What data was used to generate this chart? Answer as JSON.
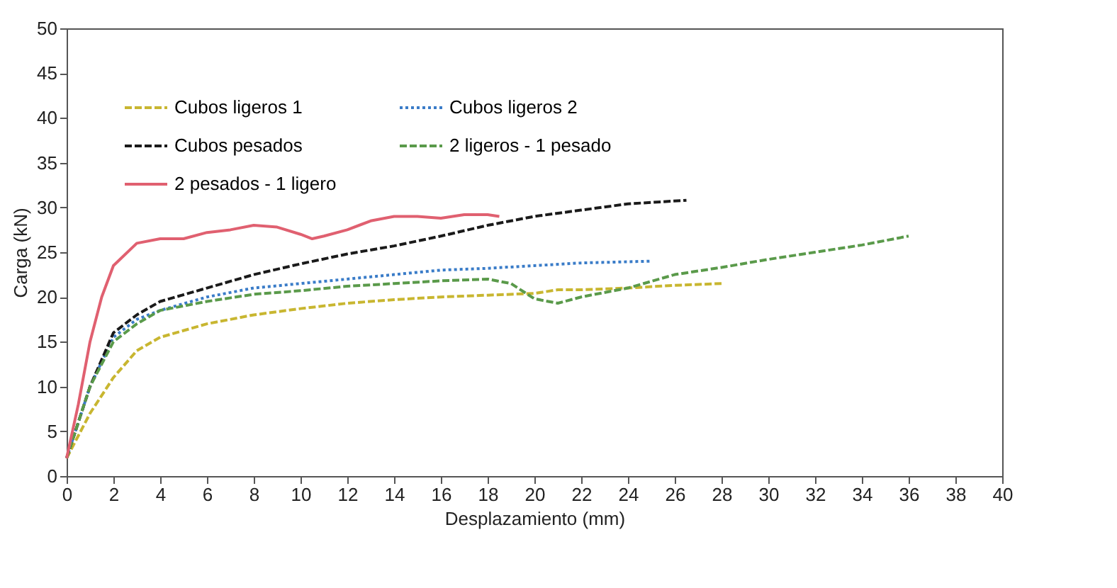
{
  "chart_data": {
    "type": "line",
    "xlabel": "Desplazamiento (mm)",
    "ylabel": "Carga (kN)",
    "xlim": [
      0,
      40
    ],
    "xticks": [
      0,
      2,
      4,
      6,
      8,
      10,
      12,
      14,
      16,
      18,
      20,
      22,
      24,
      26,
      28,
      30,
      32,
      34,
      36,
      38,
      40
    ],
    "ylim": [
      0,
      50
    ],
    "yticks": [
      0,
      5,
      10,
      15,
      20,
      25,
      30,
      35,
      40,
      45,
      50
    ],
    "grid": false,
    "legend": "top left",
    "series": [
      {
        "name": "Cubos ligeros 1",
        "color": "#c8b630",
        "line_style": "dashed",
        "x": [
          0,
          1,
          2,
          3,
          4,
          6,
          8,
          10,
          12,
          14,
          16,
          18,
          20,
          21,
          22,
          24,
          26,
          28
        ],
        "values": [
          2,
          7,
          11,
          14,
          15.5,
          17,
          18,
          18.7,
          19.3,
          19.7,
          20,
          20.2,
          20.4,
          20.8,
          20.8,
          21,
          21.3,
          21.5
        ]
      },
      {
        "name": "Cubos ligeros 2",
        "color": "#3a7cc8",
        "line_style": "dotted",
        "x": [
          0,
          1,
          2,
          3,
          4,
          6,
          8,
          10,
          12,
          14,
          16,
          18,
          20,
          22,
          25
        ],
        "values": [
          2,
          10,
          15.5,
          17.5,
          18.5,
          20,
          21,
          21.5,
          22,
          22.5,
          23,
          23.2,
          23.5,
          23.8,
          24
        ]
      },
      {
        "name": "Cubos pesados",
        "color": "#1a1a1a",
        "line_style": "dashed",
        "x": [
          0,
          1,
          2,
          3,
          4,
          6,
          8,
          10,
          12,
          14,
          16,
          18,
          20,
          22,
          24,
          26.5
        ],
        "values": [
          2,
          10,
          16,
          18,
          19.5,
          21,
          22.5,
          23.7,
          24.8,
          25.7,
          26.8,
          28,
          29,
          29.7,
          30.4,
          30.8
        ]
      },
      {
        "name": "2 ligeros - 1 pesado",
        "color": "#5a9a4a",
        "line_style": "dashed",
        "x": [
          0,
          1,
          2,
          3,
          4,
          6,
          8,
          10,
          12,
          14,
          16,
          18,
          19,
          20,
          21,
          22,
          24,
          26,
          28,
          30,
          32,
          34,
          36
        ],
        "values": [
          2,
          10,
          15,
          17,
          18.5,
          19.5,
          20.3,
          20.7,
          21.2,
          21.5,
          21.8,
          22,
          21.5,
          19.8,
          19.3,
          20,
          21,
          22.5,
          23.3,
          24.2,
          25,
          25.8,
          26.8
        ]
      },
      {
        "name": "2 pesados - 1 ligero",
        "color": "#e06070",
        "line_style": "solid",
        "x": [
          0,
          0.5,
          1,
          1.5,
          2,
          3,
          4,
          5,
          6,
          7,
          8,
          9,
          10,
          10.5,
          11,
          12,
          13,
          14,
          15,
          16,
          17,
          18,
          18.5
        ],
        "values": [
          2,
          8,
          15,
          20,
          23.5,
          26,
          26.5,
          26.5,
          27.2,
          27.5,
          28,
          27.8,
          27,
          26.5,
          26.8,
          27.5,
          28.5,
          29,
          29,
          28.8,
          29.2,
          29.2,
          29
        ]
      }
    ]
  }
}
